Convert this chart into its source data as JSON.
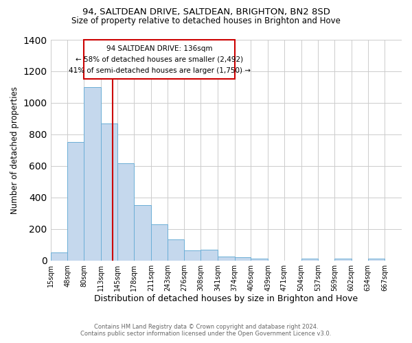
{
  "title1": "94, SALTDEAN DRIVE, SALTDEAN, BRIGHTON, BN2 8SD",
  "title2": "Size of property relative to detached houses in Brighton and Hove",
  "xlabel": "Distribution of detached houses by size in Brighton and Hove",
  "ylabel": "Number of detached properties",
  "footnote1": "Contains HM Land Registry data © Crown copyright and database right 2024.",
  "footnote2": "Contains public sector information licensed under the Open Government Licence v3.0.",
  "bar_left_edges": [
    15,
    48,
    80,
    113,
    145,
    178,
    211,
    243,
    276,
    308,
    341,
    374,
    406,
    439,
    471,
    504,
    537,
    569,
    602,
    634
  ],
  "bar_widths": [
    33,
    32,
    33,
    32,
    33,
    33,
    32,
    33,
    32,
    33,
    33,
    32,
    33,
    32,
    33,
    33,
    32,
    33,
    32,
    33
  ],
  "bar_heights": [
    50,
    750,
    1100,
    870,
    615,
    350,
    230,
    135,
    62,
    70,
    25,
    20,
    12,
    0,
    0,
    10,
    0,
    12,
    0,
    12
  ],
  "tick_labels": [
    "15sqm",
    "48sqm",
    "80sqm",
    "113sqm",
    "145sqm",
    "178sqm",
    "211sqm",
    "243sqm",
    "276sqm",
    "308sqm",
    "341sqm",
    "374sqm",
    "406sqm",
    "439sqm",
    "471sqm",
    "504sqm",
    "537sqm",
    "569sqm",
    "602sqm",
    "634sqm",
    "667sqm"
  ],
  "tick_positions": [
    15,
    48,
    80,
    113,
    145,
    178,
    211,
    243,
    276,
    308,
    341,
    374,
    406,
    439,
    471,
    504,
    537,
    569,
    602,
    634,
    667
  ],
  "bar_color": "#c5d8ed",
  "bar_edge_color": "#6baed6",
  "vline_x": 136,
  "vline_color": "#cc0000",
  "annotation_title": "94 SALTDEAN DRIVE: 136sqm",
  "annotation_line1": "← 58% of detached houses are smaller (2,492)",
  "annotation_line2": "41% of semi-detached houses are larger (1,750) →",
  "box_color": "#cc0000",
  "ylim": [
    0,
    1400
  ],
  "yticks": [
    0,
    200,
    400,
    600,
    800,
    1000,
    1200,
    1400
  ],
  "xlim_left": 15,
  "xlim_right": 700,
  "background_color": "#ffffff",
  "grid_color": "#cccccc"
}
